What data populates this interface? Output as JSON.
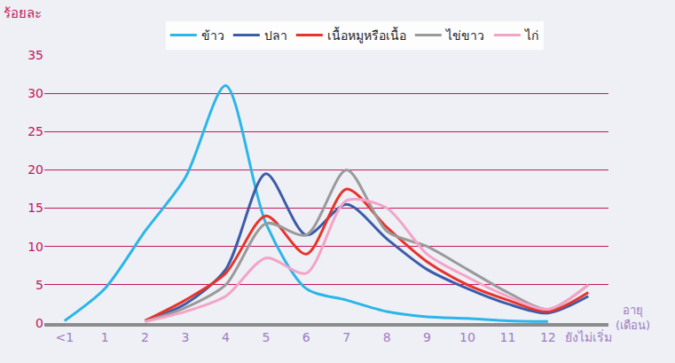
{
  "chart_data": {
    "type": "line",
    "y_label": "ร้อยละ",
    "x_label": "อายุ (เดือน)",
    "categories": [
      "<1",
      "1",
      "2",
      "3",
      "4",
      "5",
      "6",
      "7",
      "8",
      "9",
      "10",
      "11",
      "12",
      "ยังไม่เริ่ม"
    ],
    "series": [
      {
        "name": "ข้าว",
        "color": "#2bb5e8",
        "values": [
          0.3,
          4.5,
          12,
          19,
          31,
          13,
          4.5,
          3,
          1.5,
          0.8,
          0.6,
          0.3,
          0.2,
          null
        ]
      },
      {
        "name": "ปลา",
        "color": "#3b5ca8",
        "values": [
          null,
          null,
          0.3,
          2.5,
          7,
          19.5,
          11.5,
          15.5,
          11,
          7,
          4.5,
          2.5,
          1.3,
          3.5
        ]
      },
      {
        "name": "เนื้อหมูหรือเนื้อ",
        "color": "#e8332a",
        "values": [
          null,
          null,
          0.3,
          3,
          6.5,
          14,
          9,
          17.5,
          12.5,
          8,
          5,
          3,
          1.5,
          4
        ]
      },
      {
        "name": "ไข่ขาว",
        "color": "#9a9a9a",
        "values": [
          null,
          null,
          0.2,
          2,
          5,
          13,
          11.5,
          20,
          12,
          10,
          7,
          4,
          1.8,
          5
        ]
      },
      {
        "name": "ไก่",
        "color": "#f4a3c8",
        "values": [
          null,
          null,
          0.2,
          1.5,
          3.5,
          8.5,
          6.5,
          16,
          15,
          9,
          6,
          3.5,
          1.8,
          5
        ]
      }
    ],
    "ylim": [
      0,
      35
    ],
    "yticks": [
      0,
      5,
      10,
      15,
      20,
      25,
      30,
      35
    ],
    "grid": true,
    "legend": "top"
  }
}
